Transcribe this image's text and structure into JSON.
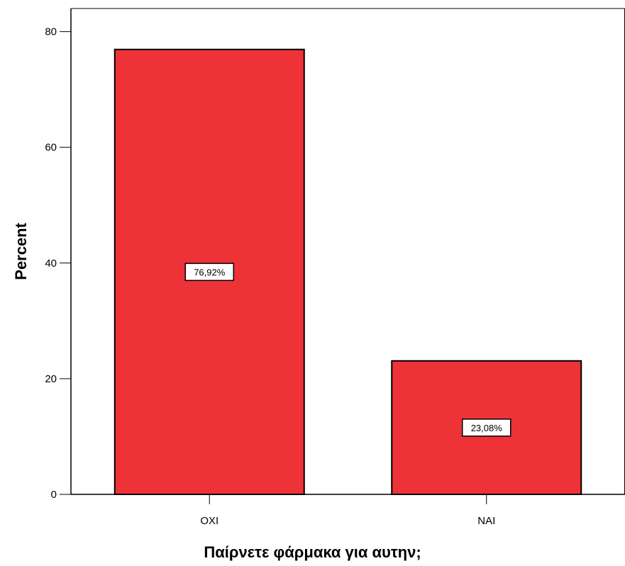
{
  "chart_data": {
    "type": "bar",
    "categories": [
      "ΟΧΙ",
      "ΝΑΙ"
    ],
    "values": [
      76.92,
      23.08
    ],
    "data_labels": [
      "76,92%",
      "23,08%"
    ],
    "xlabel": "Παίρνετε φάρμακα για αυτην;",
    "ylabel": "Percent",
    "ylim": [
      0,
      84
    ],
    "yticks": [
      0,
      20,
      40,
      60,
      80
    ],
    "grid": false,
    "bar_color": "#ee3338",
    "bar_edge_color": "#000000",
    "label_box_fill": "#ffffff"
  }
}
